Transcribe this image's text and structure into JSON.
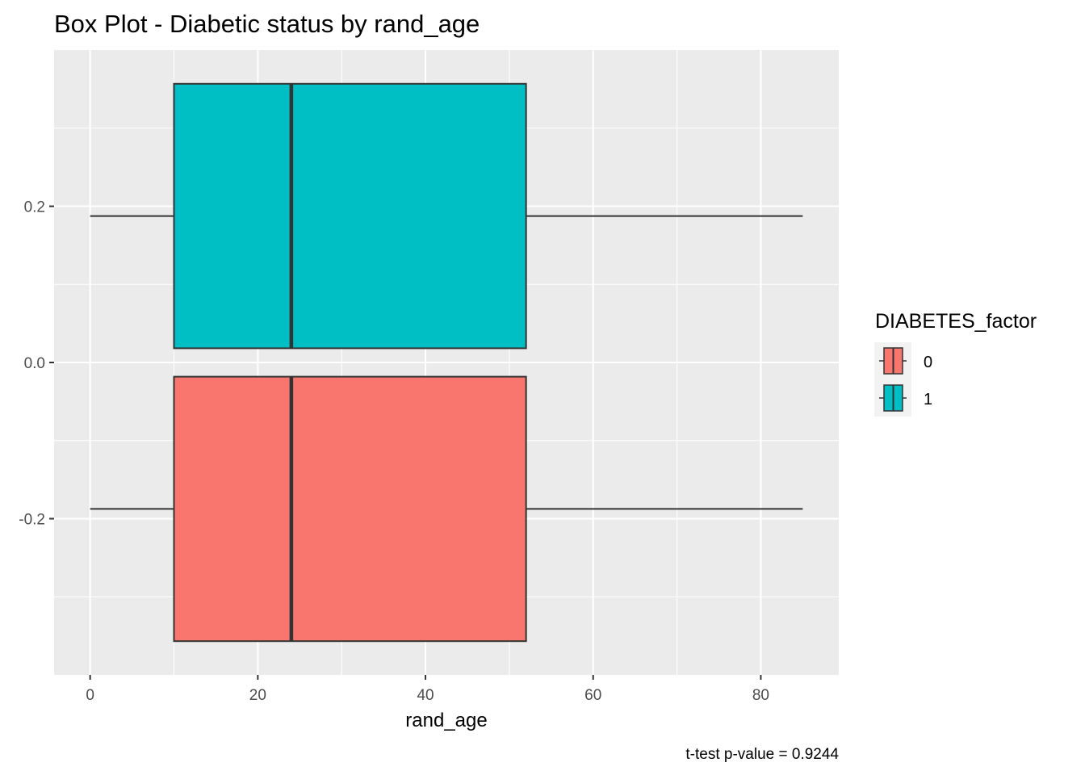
{
  "chart_data": {
    "type": "boxplot",
    "title": "Box Plot - Diabetic status by rand_age",
    "xlabel": "rand_age",
    "ylabel": "",
    "caption": "t-test p-value = 0.9244",
    "xlim": [
      -4.3,
      89.3
    ],
    "ylim": [
      -0.4,
      0.4
    ],
    "x_ticks": [
      0,
      20,
      40,
      60,
      80
    ],
    "x_tick_labels": [
      "0",
      "20",
      "40",
      "60",
      "80"
    ],
    "y_ticks": [
      0.2,
      0.0,
      -0.2
    ],
    "y_tick_labels": [
      "0.2",
      "0.0",
      "-0.2"
    ],
    "grid": true,
    "legend": {
      "title": "DIABETES_factor",
      "position": "right",
      "entries": [
        {
          "label": "0",
          "color": "#F8766D"
        },
        {
          "label": "1",
          "color": "#00BFC4"
        }
      ]
    },
    "series": [
      {
        "name": "0",
        "color": "#F8766D",
        "y_center": -0.1875,
        "y_halfwidth": 0.1693,
        "min": 0,
        "q1": 10,
        "median": 24,
        "q3": 52,
        "max": 85
      },
      {
        "name": "1",
        "color": "#00BFC4",
        "y_center": 0.1875,
        "y_halfwidth": 0.1693,
        "min": 0,
        "q1": 10,
        "median": 24,
        "q3": 52,
        "max": 85
      }
    ]
  }
}
